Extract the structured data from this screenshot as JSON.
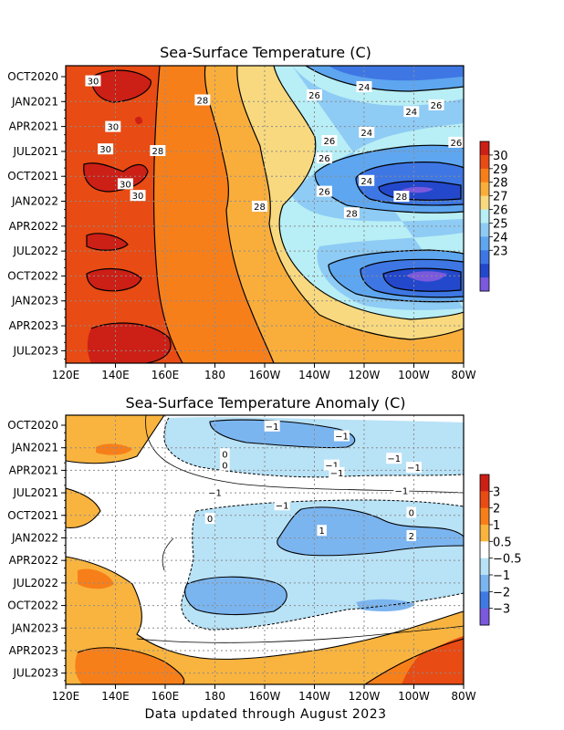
{
  "footer": "Data updated through August 2023",
  "chart_data": [
    {
      "type": "heatmap",
      "title": "Sea-Surface Temperature (C)",
      "x_axis": {
        "ticks": [
          "120E",
          "140E",
          "160E",
          "180",
          "160W",
          "140W",
          "120W",
          "100W",
          "80W"
        ],
        "lon_east": [
          120,
          140,
          160,
          180,
          200,
          220,
          240,
          260,
          280
        ]
      },
      "y_axis": {
        "ticks": [
          "OCT2020",
          "JAN2021",
          "APR2021",
          "JUL2021",
          "OCT2021",
          "JAN2022",
          "APR2022",
          "JUL2022",
          "OCT2022",
          "JAN2023",
          "APR2023",
          "JUL2023"
        ],
        "range": [
          "OCT2020",
          "AUG2023"
        ]
      },
      "colorbar": {
        "labels": [
          "30",
          "29",
          "28",
          "27",
          "26",
          "25",
          "24",
          "23"
        ],
        "colors": [
          "#cc1f16",
          "#e84b13",
          "#f77f1a",
          "#f9ae3c",
          "#f8d97f",
          "#b8eef5",
          "#8ecbf5",
          "#5ea6ef",
          "#3e77e4",
          "#2348cc",
          "#7b59dd"
        ]
      },
      "grid": true,
      "contour_labels": [
        {
          "text": "30",
          "lon": 131,
          "month": 0.5
        },
        {
          "text": "24",
          "lon": 240,
          "month": 1.2
        },
        {
          "text": "26",
          "lon": 220,
          "month": 2.2
        },
        {
          "text": "28",
          "lon": 175,
          "month": 2.8
        },
        {
          "text": "26",
          "lon": 269,
          "month": 3.4
        },
        {
          "text": "24",
          "lon": 259,
          "month": 4.2
        },
        {
          "text": "30",
          "lon": 139,
          "month": 6.0
        },
        {
          "text": "24",
          "lon": 241,
          "month": 6.7
        },
        {
          "text": "26",
          "lon": 226,
          "month": 7.7
        },
        {
          "text": "26",
          "lon": 277,
          "month": 7.9
        },
        {
          "text": "30",
          "lon": 136,
          "month": 8.7
        },
        {
          "text": "28",
          "lon": 157,
          "month": 8.9
        },
        {
          "text": "26",
          "lon": 224,
          "month": 9.8
        },
        {
          "text": "24",
          "lon": 241,
          "month": 12.5
        },
        {
          "text": "30",
          "lon": 144,
          "month": 12.9
        },
        {
          "text": "26",
          "lon": 224,
          "month": 13.8
        },
        {
          "text": "30",
          "lon": 149,
          "month": 14.3
        },
        {
          "text": "28",
          "lon": 255,
          "month": 14.4
        },
        {
          "text": "28",
          "lon": 198,
          "month": 15.6
        },
        {
          "text": "28",
          "lon": 235,
          "month": 16.4
        }
      ]
    },
    {
      "type": "heatmap",
      "title": "Sea-Surface Temperature Anomaly (C)",
      "x_axis": {
        "ticks": [
          "120E",
          "140E",
          "160E",
          "180",
          "160W",
          "140W",
          "120W",
          "100W",
          "80W"
        ],
        "lon_east": [
          120,
          140,
          160,
          180,
          200,
          220,
          240,
          260,
          280
        ]
      },
      "y_axis": {
        "ticks": [
          "OCT2020",
          "JAN2021",
          "APR2021",
          "JUL2021",
          "OCT2021",
          "JAN2022",
          "APR2022",
          "JUL2022",
          "OCT2022",
          "JAN2023",
          "APR2023",
          "JUL2023"
        ],
        "range": [
          "OCT2020",
          "AUG2023"
        ]
      },
      "colorbar": {
        "labels": [
          "3",
          "2",
          "1",
          "0.5",
          "−0.5",
          "−1",
          "−2",
          "−3"
        ],
        "colors": [
          "#cc1f16",
          "#e84b13",
          "#f77f1a",
          "#f9b43f",
          "#ffffff",
          "#b8e2f6",
          "#7bb5f0",
          "#3f7ae4",
          "#7b59dd"
        ]
      },
      "grid": true,
      "contour_labels": [
        {
          "text": "−1",
          "lon": 203,
          "month": 0.1
        },
        {
          "text": "−1",
          "lon": 231,
          "month": 1.4
        },
        {
          "text": "0",
          "lon": 184,
          "month": 3.8
        },
        {
          "text": "0",
          "lon": 184,
          "month": 5.3
        },
        {
          "text": "−1",
          "lon": 227,
          "month": 5.3
        },
        {
          "text": "−1",
          "lon": 252,
          "month": 4.4
        },
        {
          "text": "−1",
          "lon": 260,
          "month": 5.6
        },
        {
          "text": "−1",
          "lon": 229,
          "month": 6.3
        },
        {
          "text": "−1",
          "lon": 180,
          "month": 8.9
        },
        {
          "text": "−1",
          "lon": 255,
          "month": 8.7
        },
        {
          "text": "−1",
          "lon": 207,
          "month": 10.6
        },
        {
          "text": "0",
          "lon": 178,
          "month": 12.4
        },
        {
          "text": "0",
          "lon": 259,
          "month": 11.6
        },
        {
          "text": "1",
          "lon": 223,
          "month": 14.0
        },
        {
          "text": "2",
          "lon": 259,
          "month": 14.7
        }
      ]
    }
  ]
}
